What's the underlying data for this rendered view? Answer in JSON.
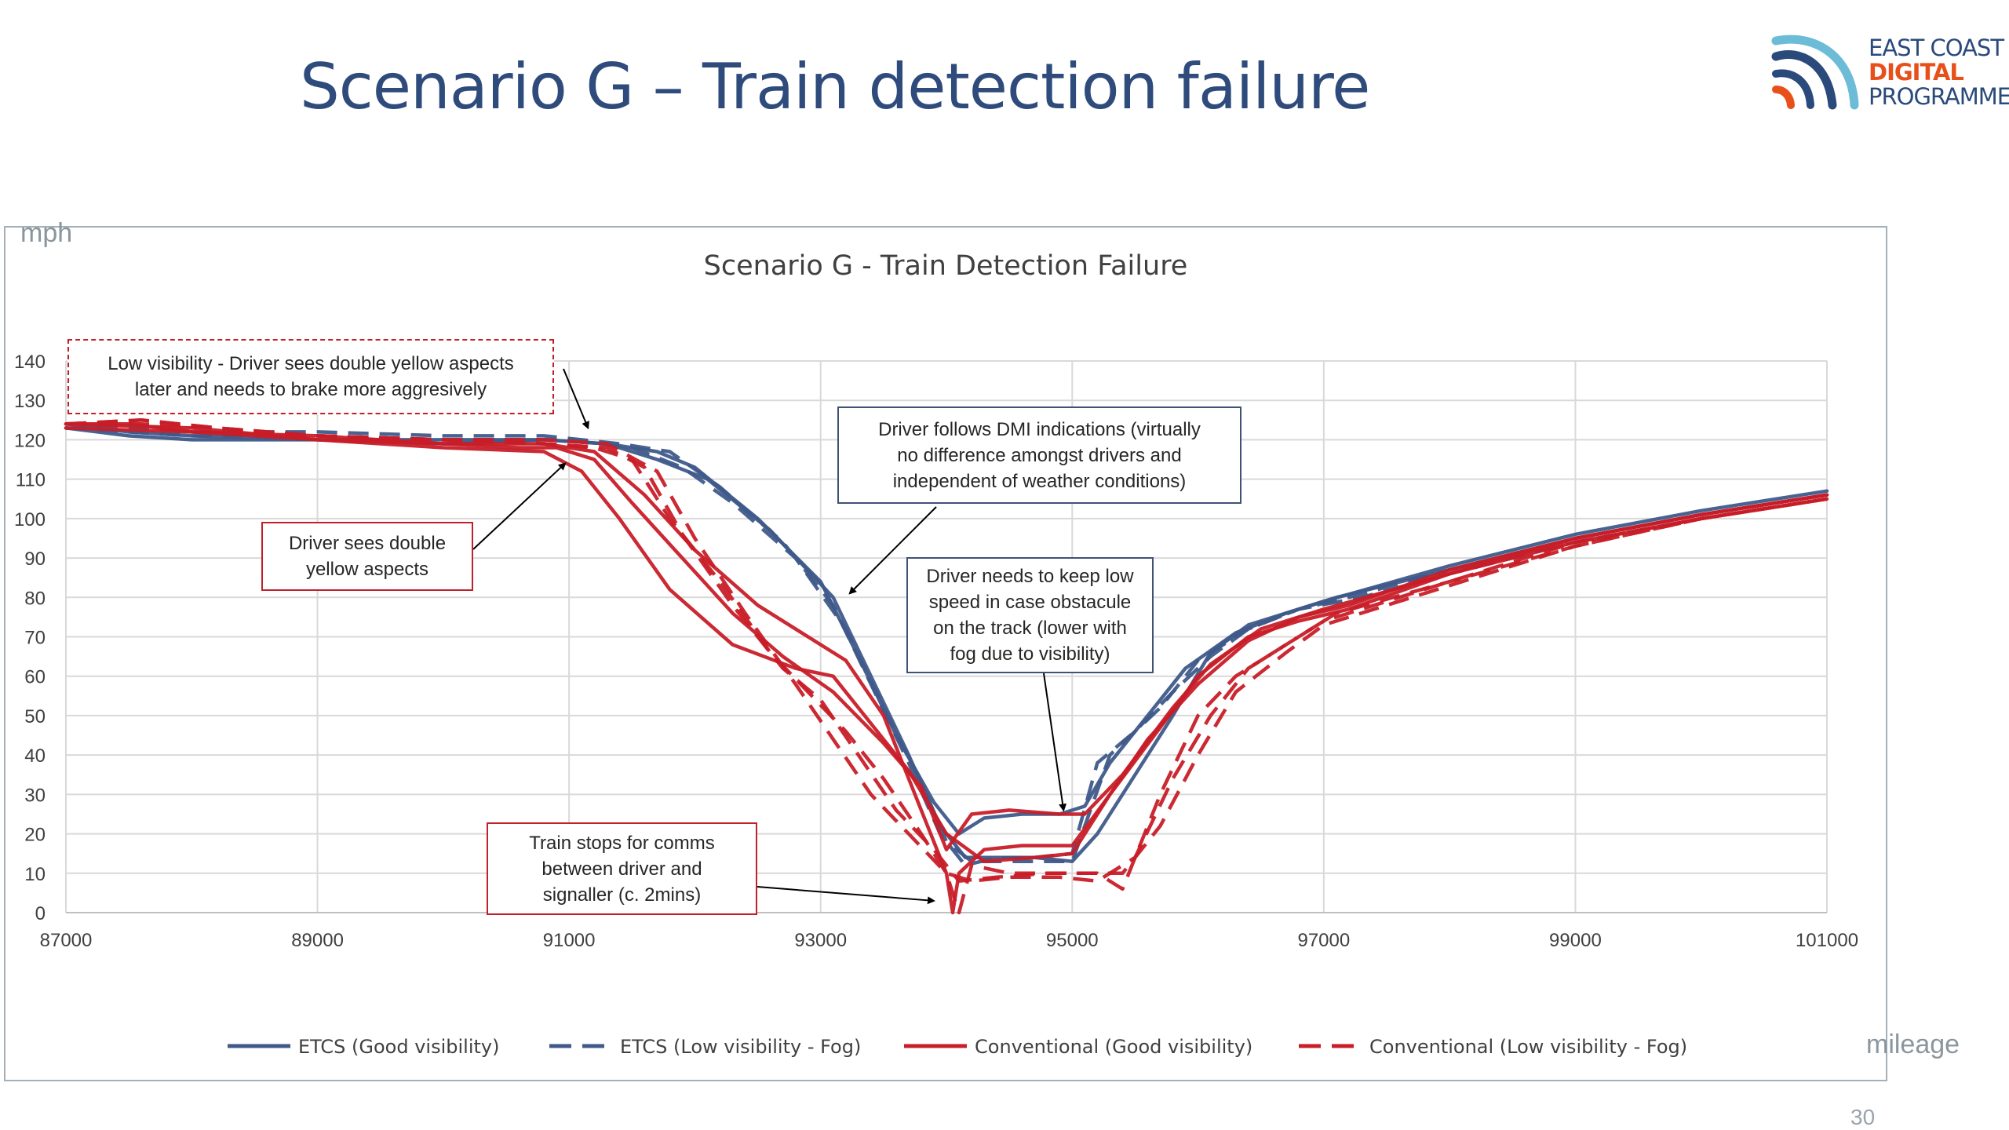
{
  "slide": {
    "title": "Scenario G – Train detection failure",
    "page_number": "30"
  },
  "logo": {
    "line1": "EAST COAST",
    "line2": "DIGITAL",
    "line3": "PROGRAMME",
    "colors": {
      "navy": "#2a4a7c",
      "orange": "#e8501a",
      "teal": "#6cbcd8"
    }
  },
  "chart_data": {
    "type": "line",
    "title": "Scenario G - Train Detection Failure",
    "ylabel": "mph",
    "xlabel": "mileage",
    "xlim": [
      87000,
      101000
    ],
    "ylim": [
      0,
      140
    ],
    "x_ticks": [
      87000,
      89000,
      91000,
      93000,
      95000,
      97000,
      99000,
      101000
    ],
    "y_ticks": [
      0,
      10,
      20,
      30,
      40,
      50,
      60,
      70,
      80,
      90,
      100,
      110,
      120,
      130,
      140
    ],
    "grid": true,
    "legend_position": "bottom",
    "legend": [
      {
        "label": "ETCS (Good visibility)",
        "color": "#3f5a8a",
        "dashed": false
      },
      {
        "label": "ETCS (Low visibility - Fog)",
        "color": "#3f5a8a",
        "dashed": true
      },
      {
        "label": "Conventional (Good visibility)",
        "color": "#c81e28",
        "dashed": false
      },
      {
        "label": "Conventional (Low visibility - Fog)",
        "color": "#c81e28",
        "dashed": true
      }
    ],
    "series": [
      {
        "group": 0,
        "x": [
          87000,
          87500,
          88000,
          89000,
          90000,
          90800,
          91300,
          91700,
          92000,
          92500,
          93000,
          93300,
          93600,
          93900,
          94100,
          94300,
          94600,
          94900,
          95100,
          95300,
          95600,
          95900,
          96300,
          96700,
          97000,
          98000,
          99000,
          100000,
          101000
        ],
        "y": [
          124,
          122,
          121,
          120,
          120,
          120,
          119,
          117,
          113,
          100,
          84,
          65,
          45,
          28,
          20,
          24,
          25,
          25,
          27,
          38,
          50,
          62,
          71,
          76,
          79,
          88,
          96,
          102,
          107
        ]
      },
      {
        "group": 0,
        "x": [
          87000,
          87500,
          88000,
          89000,
          90000,
          90800,
          91300,
          91700,
          92100,
          92600,
          93100,
          93400,
          93700,
          93950,
          94150,
          94400,
          94700,
          95000,
          95200,
          95500,
          95800,
          96100,
          96400,
          96800,
          97100,
          98000,
          99000,
          100000,
          101000
        ],
        "y": [
          123,
          121,
          120,
          120,
          119,
          120,
          119,
          115,
          110,
          97,
          80,
          60,
          40,
          22,
          14,
          14,
          14,
          13,
          20,
          35,
          50,
          66,
          73,
          77,
          80,
          87,
          95,
          101,
          106
        ]
      },
      {
        "group": 1,
        "x": [
          87000,
          87500,
          88000,
          89000,
          90000,
          90800,
          91400,
          91800,
          92200,
          92700,
          93100,
          93400,
          93700,
          93950,
          94150,
          94400,
          94700,
          95000,
          95200,
          95500,
          95800,
          96100,
          96400,
          96800,
          97200,
          98000,
          99000,
          100000,
          101000
        ],
        "y": [
          124,
          123,
          122,
          122,
          121,
          121,
          119,
          117,
          108,
          94,
          78,
          58,
          38,
          20,
          12,
          14,
          14,
          15,
          38,
          46,
          56,
          65,
          72,
          77,
          80,
          87,
          95,
          101,
          106
        ]
      },
      {
        "group": 1,
        "x": [
          87000,
          88000,
          89000,
          90000,
          91000,
          91500,
          91900,
          92300,
          92800,
          93200,
          93500,
          93800,
          94000,
          94200,
          94500,
          94800,
          95000,
          95300,
          95700,
          96000,
          96400,
          96800,
          97300,
          98000,
          99000,
          100000,
          101000
        ],
        "y": [
          123,
          121,
          121,
          120,
          120,
          118,
          113,
          104,
          90,
          72,
          52,
          33,
          18,
          13,
          13,
          13,
          13,
          40,
          52,
          64,
          72,
          77,
          80,
          86,
          94,
          100,
          105
        ]
      },
      {
        "group": 2,
        "x": [
          87000,
          87500,
          88000,
          89000,
          90000,
          90600,
          90900,
          91200,
          91500,
          91900,
          92300,
          92700,
          93100,
          93500,
          93800,
          94000,
          94200,
          94500,
          94900,
          95100,
          95400,
          95800,
          96100,
          96500,
          97000,
          98000,
          99000,
          100000,
          101000
        ],
        "y": [
          124,
          124,
          122,
          121,
          119,
          118,
          118,
          115,
          104,
          90,
          76,
          65,
          56,
          43,
          32,
          16,
          25,
          26,
          25,
          25,
          35,
          52,
          63,
          72,
          77,
          86,
          95,
          101,
          106
        ]
      },
      {
        "group": 2,
        "x": [
          87000,
          88000,
          89000,
          90000,
          90800,
          91100,
          91400,
          91800,
          92300,
          92800,
          93100,
          93400,
          93700,
          94000,
          94300,
          94700,
          95000,
          95300,
          95700,
          96000,
          96400,
          96800,
          97200,
          98000,
          99000,
          100000,
          101000
        ],
        "y": [
          124,
          123,
          120,
          118,
          117,
          112,
          100,
          82,
          68,
          62,
          60,
          48,
          36,
          20,
          13,
          14,
          15,
          30,
          47,
          60,
          70,
          74,
          77,
          86,
          94,
          100,
          105
        ]
      },
      {
        "group": 2,
        "x": [
          87000,
          88000,
          89000,
          90000,
          90800,
          91200,
          91600,
          92000,
          92500,
          92900,
          93200,
          93500,
          93800,
          94000,
          94050,
          94100,
          94300,
          94600,
          95000,
          95300,
          95600,
          96000,
          96400,
          96800,
          97200,
          98000,
          99000,
          100000,
          101000
        ],
        "y": [
          123,
          122,
          120,
          119,
          119,
          117,
          106,
          92,
          78,
          70,
          64,
          50,
          26,
          10,
          0,
          10,
          16,
          17,
          17,
          30,
          44,
          58,
          69,
          75,
          78,
          87,
          95,
          101,
          106
        ]
      },
      {
        "group": 3,
        "x": [
          87000,
          87600,
          88200,
          89000,
          90000,
          90800,
          91200,
          91500,
          91800,
          92200,
          92600,
          92900,
          93200,
          93500,
          93800,
          94000,
          94100,
          94200,
          94500,
          94900,
          95200,
          95400,
          95700,
          96000,
          96300,
          96700,
          97000,
          98000,
          99000,
          100000,
          101000
        ],
        "y": [
          124,
          125,
          123,
          121,
          120,
          119,
          118,
          115,
          100,
          84,
          66,
          56,
          46,
          34,
          20,
          10,
          0,
          12,
          10,
          10,
          10,
          6,
          30,
          50,
          60,
          68,
          74,
          84,
          94,
          100,
          105
        ]
      },
      {
        "group": 3,
        "x": [
          87000,
          87600,
          88200,
          89000,
          90000,
          90800,
          91300,
          91600,
          91900,
          92300,
          92700,
          93000,
          93300,
          93600,
          93900,
          94100,
          94400,
          94800,
          95100,
          95400,
          95700,
          96000,
          96300,
          96700,
          97000,
          98000,
          99000,
          100000,
          101000
        ],
        "y": [
          124,
          124,
          123,
          121,
          120,
          119,
          118,
          113,
          96,
          78,
          62,
          54,
          40,
          26,
          16,
          8,
          9,
          10,
          10,
          10,
          22,
          40,
          56,
          66,
          73,
          83,
          93,
          100,
          105
        ]
      },
      {
        "group": 3,
        "x": [
          87000,
          87600,
          88200,
          89000,
          90000,
          90800,
          91300,
          91700,
          92000,
          92400,
          92800,
          93100,
          93400,
          93700,
          94000,
          94200,
          94500,
          94900,
          95200,
          95500,
          95800,
          96100,
          96400,
          96800,
          97100,
          98000,
          99000,
          100000,
          101000
        ],
        "y": [
          124,
          125,
          123,
          121,
          120,
          120,
          119,
          112,
          95,
          76,
          58,
          44,
          30,
          20,
          10,
          8,
          9,
          9,
          8,
          14,
          34,
          50,
          62,
          70,
          76,
          84,
          93,
          100,
          105
        ]
      }
    ],
    "annotations": [
      {
        "id": "low-visibility",
        "lines": [
          "Low visibility - Driver sees double yellow aspects",
          "later and needs to brake more aggresively"
        ],
        "border": "red-dashed"
      },
      {
        "id": "driver-sees-double-yellow",
        "lines": [
          "Driver sees double",
          "yellow aspects"
        ],
        "border": "red"
      },
      {
        "id": "dmi",
        "lines": [
          "Driver follows DMI indications (virtually",
          "no difference amongst drivers and",
          "independent of weather conditions)"
        ],
        "border": "blue"
      },
      {
        "id": "keep-low-speed",
        "lines": [
          "Driver needs to keep low",
          "speed in case obstacule",
          "on the track (lower with",
          "fog due to visibility)"
        ],
        "border": "blue"
      },
      {
        "id": "train-stops",
        "lines": [
          "Train stops for comms",
          "between driver and",
          "signaller (c. 2mins)"
        ],
        "border": "red"
      }
    ]
  }
}
